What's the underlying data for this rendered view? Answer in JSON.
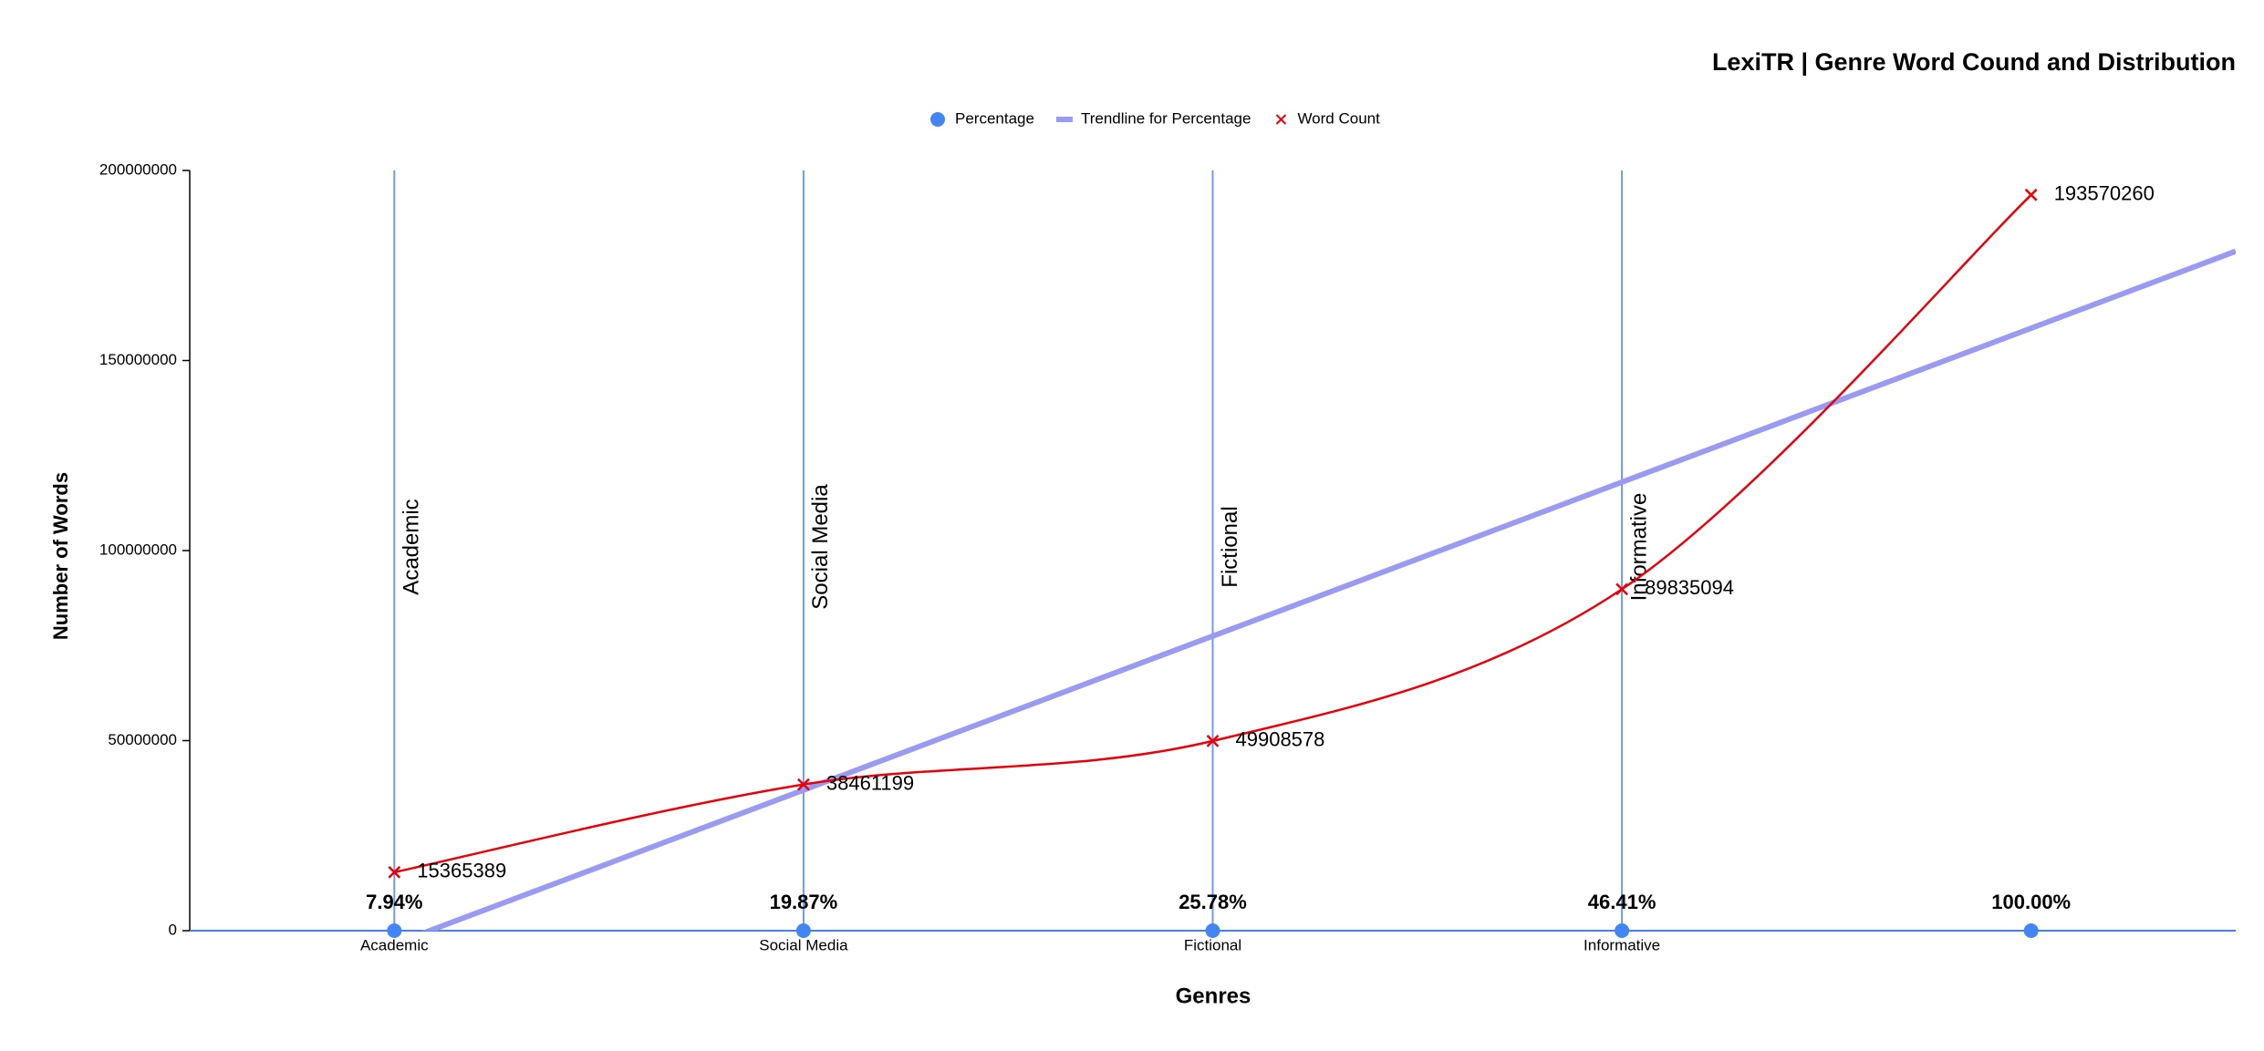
{
  "chart_data": {
    "type": "line",
    "title": "LexiTR | Genre Word Cound and Distribution",
    "x_label": "Genres",
    "y_label": "Number of Words",
    "categories": [
      "Academic",
      "Social Media",
      "Fictional",
      "Informative",
      null
    ],
    "series": [
      {
        "name": "Percentage",
        "color": "#4285f4",
        "marker": "circle",
        "values": [
          7.94,
          19.87,
          25.78,
          46.41,
          100.0
        ],
        "value_labels": [
          "7.94%",
          "19.87%",
          "25.78%",
          "46.41%",
          "100.00%"
        ]
      },
      {
        "name": "Trendline for Percentage",
        "color": "#9a9af2",
        "marker": "trendline",
        "values": [
          -3500000,
          37000000,
          77500000,
          118000000,
          158500000
        ]
      },
      {
        "name": "Word Count",
        "color": "#e8000b",
        "marker": "x",
        "values": [
          15365389,
          38461199,
          49908578,
          89835094,
          193570260
        ]
      }
    ],
    "ylim": [
      0,
      200000000
    ],
    "yticks": [
      0,
      50000000,
      100000000,
      150000000,
      200000000
    ],
    "category_lines": true,
    "legend": "top"
  }
}
